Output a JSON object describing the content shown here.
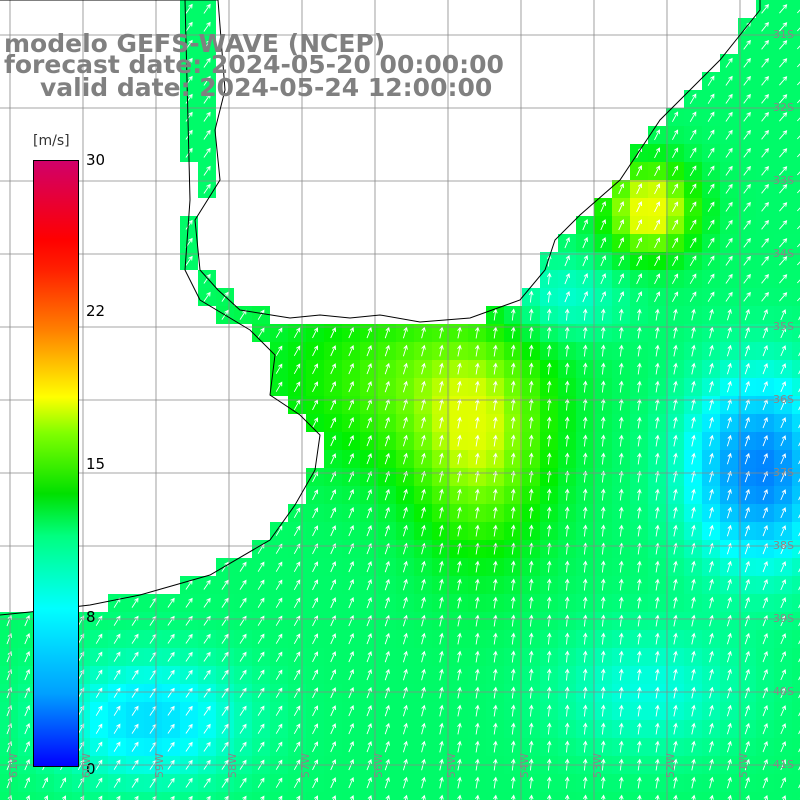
{
  "title": {
    "line1": "modelo GEFS-WAVE (NCEP)",
    "line2": "forecast date: 2024-05-20 00:00:00",
    "line3": "valid date: 2024-05-24 12:00:00"
  },
  "colorbar": {
    "unit": "[m/s]",
    "ticks": [
      "30",
      "22",
      "15",
      "8",
      "0"
    ],
    "colors": [
      "#0000ff",
      "#00a0ff",
      "#00ffff",
      "#00ff80",
      "#00e000",
      "#80ff00",
      "#ffff00",
      "#ff8000",
      "#ff0000",
      "#d0006a"
    ]
  },
  "lat_labels": [
    "31S",
    "32S",
    "33S",
    "34S",
    "35S",
    "36S",
    "37S",
    "38S",
    "39S",
    "40S",
    "41S"
  ],
  "lon_labels": [
    "61W",
    "60W",
    "59W",
    "58W",
    "57W",
    "56W",
    "55W",
    "54W",
    "53W",
    "52W",
    "51W"
  ],
  "map": {
    "ocean_speed_note": "wind speed field",
    "land_color": "#ffffff",
    "coast_color": "#000000",
    "grid_color": "#888888",
    "arrow_color": "#ffffff"
  }
}
